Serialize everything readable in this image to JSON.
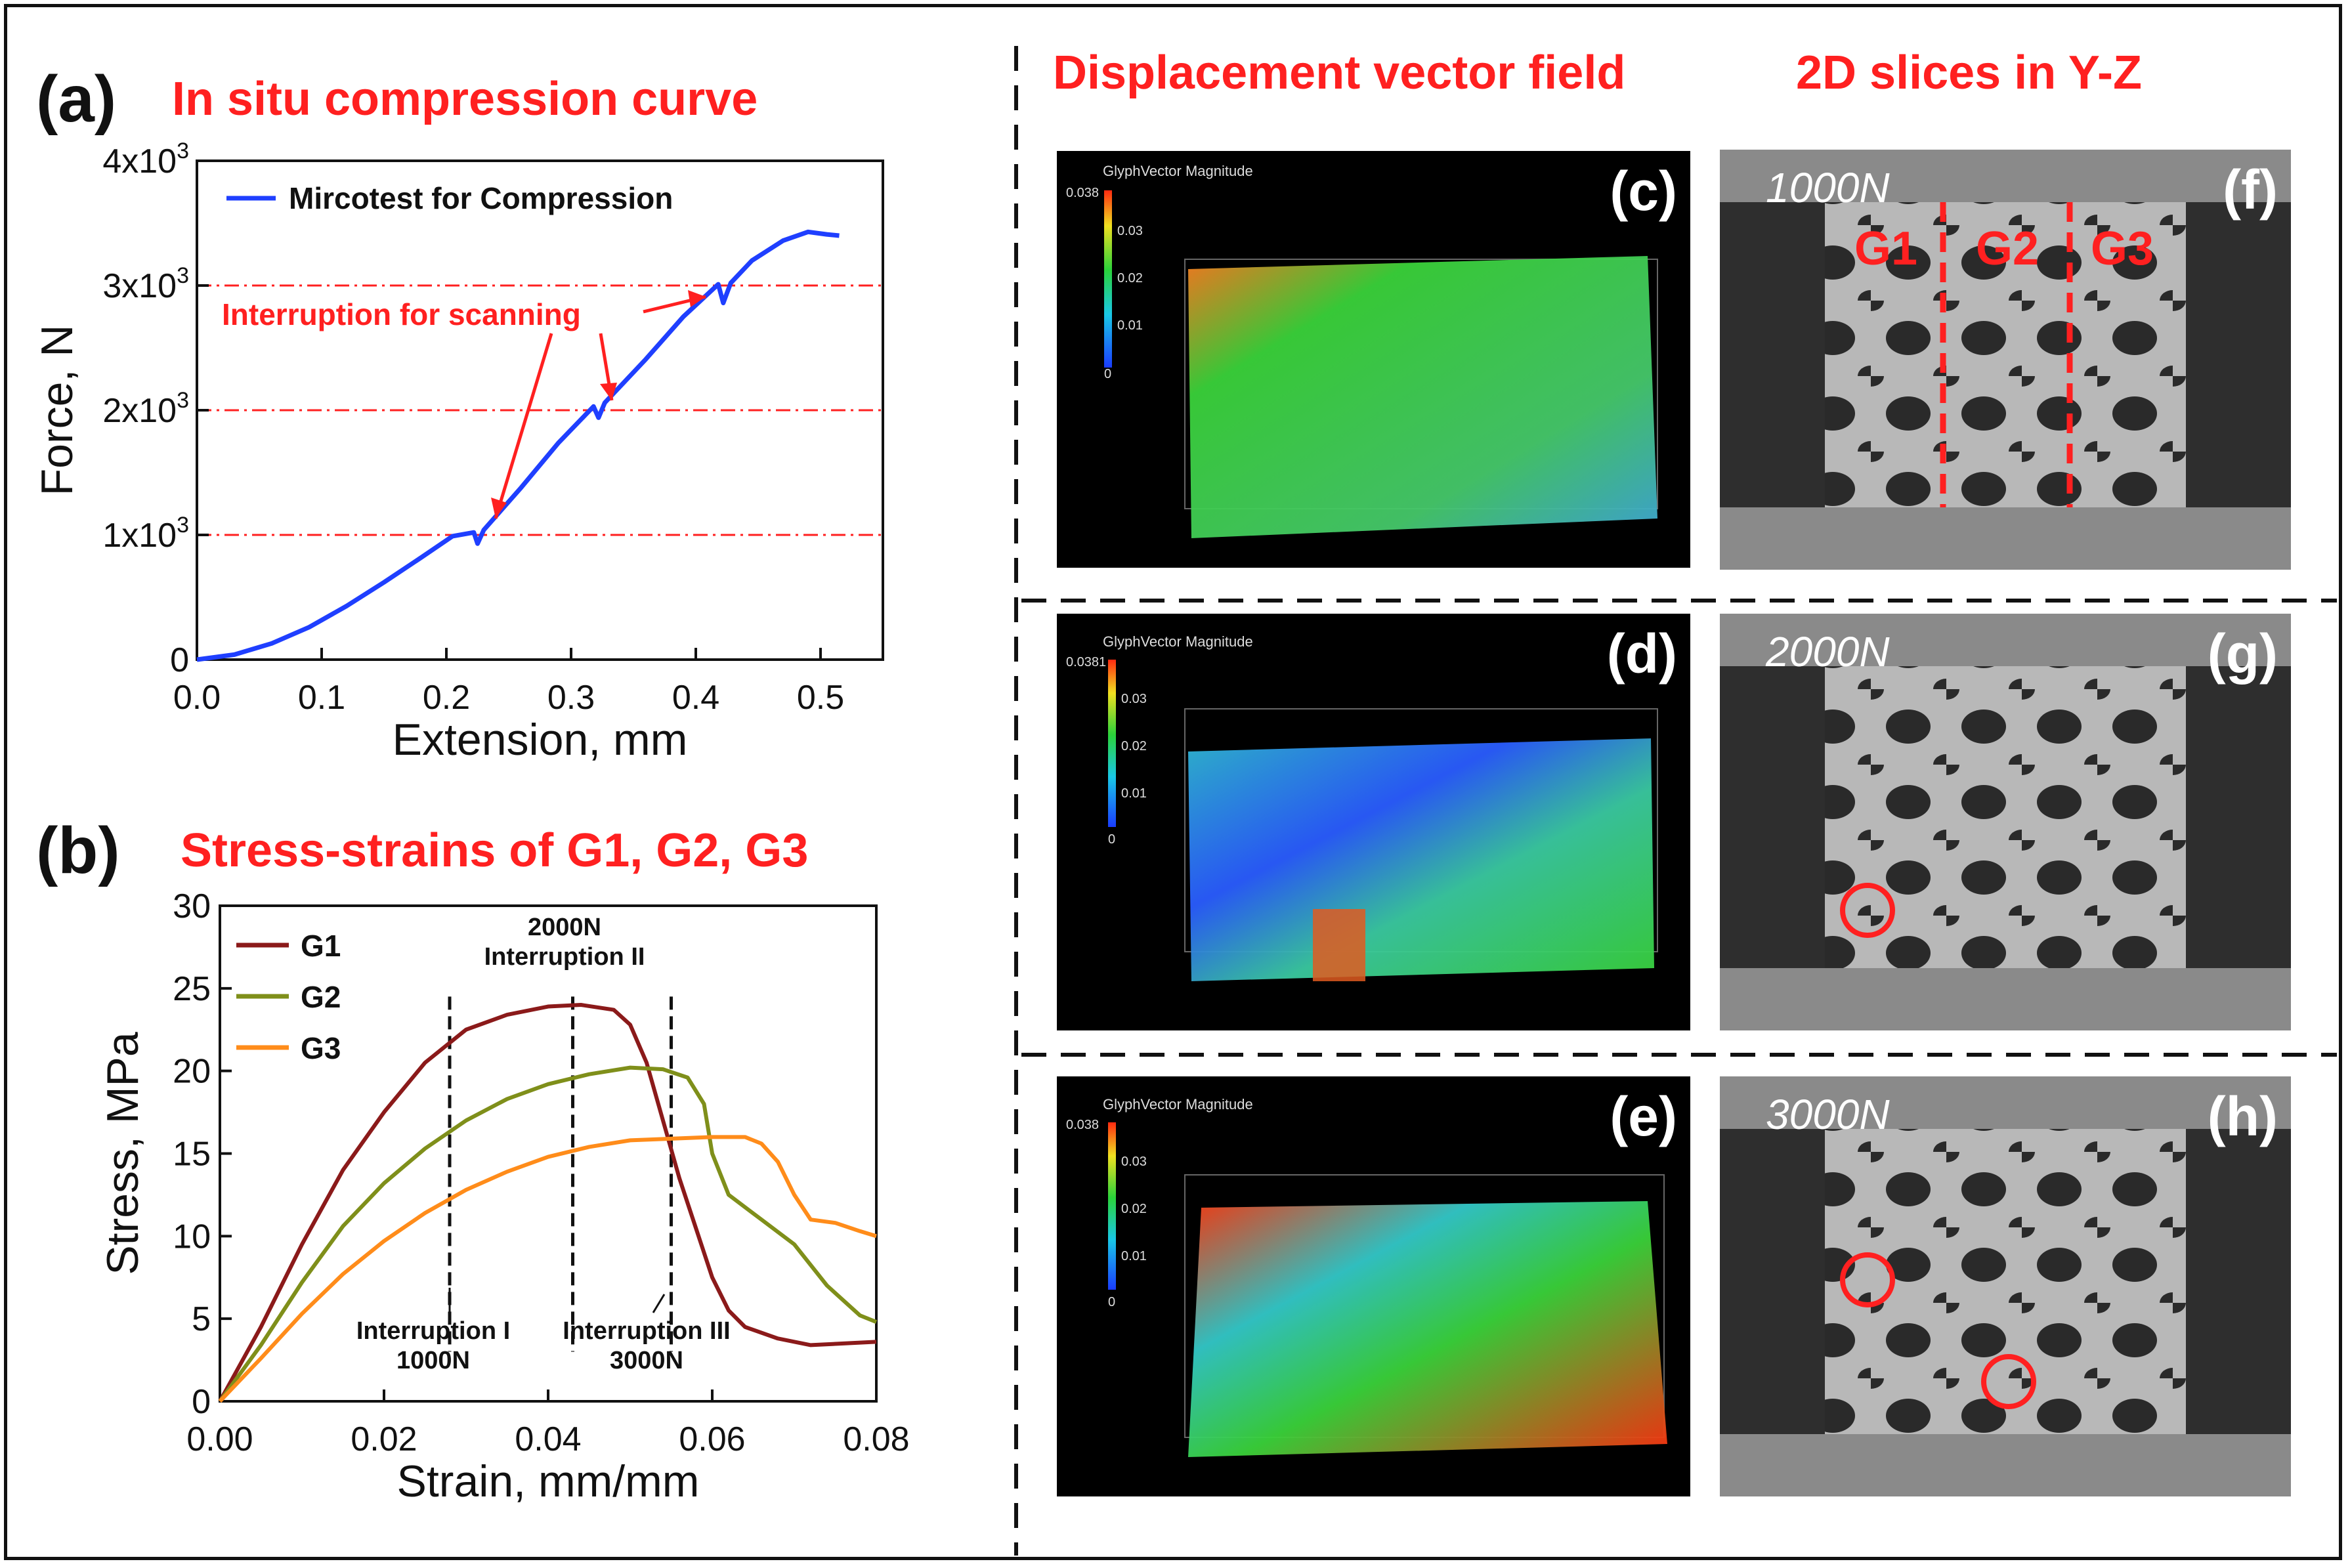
{
  "figure": {
    "panel_a": {
      "letter": "(a)",
      "title": "In situ compression curve",
      "annotation": "Interruption for scanning",
      "legend": "Mircotest for Compression",
      "legend_color": "#1f3fff",
      "ref_color": "#ff2020"
    },
    "panel_b": {
      "letter": "(b)",
      "title": "Stress-strains of G1, G2, G3",
      "annotations": [
        {
          "line1": "Interruption I",
          "line2": "1000N"
        },
        {
          "line1": "2000N",
          "line2": "Interruption II"
        },
        {
          "line1": "Interruption III",
          "line2": "3000N"
        }
      ]
    },
    "right": {
      "header_left": "Displacement vector field",
      "header_right": "2D slices  in Y-Z",
      "vector_panels": [
        {
          "letter": "(c)",
          "colorbar_title": "GlyphVector Magnitude",
          "max": "0.038",
          "ticks": [
            "0.03",
            "0.02",
            "0.01",
            "0"
          ]
        },
        {
          "letter": "(d)",
          "colorbar_title": "GlyphVector Magnitude",
          "max": "0.0381",
          "ticks": [
            "0.03",
            "0.02",
            "0.01",
            "0"
          ]
        },
        {
          "letter": "(e)",
          "colorbar_title": "GlyphVector Magnitude",
          "max": "0.038",
          "ticks": [
            "0.03",
            "0.02",
            "0.01",
            "0"
          ]
        }
      ],
      "slice_panels": [
        {
          "letter": "(f)",
          "load": "1000N",
          "regions": [
            "G1",
            "G2",
            "G3"
          ]
        },
        {
          "letter": "(g)",
          "load": "2000N"
        },
        {
          "letter": "(h)",
          "load": "3000N"
        }
      ]
    }
  },
  "chart_data": [
    {
      "type": "line",
      "title": "In situ compression curve",
      "xlabel": "Extension, mm",
      "ylabel": "Force, N",
      "xlim": [
        0.0,
        0.55
      ],
      "ylim": [
        0,
        4000
      ],
      "xticks": [
        "0.0",
        "0.1",
        "0.2",
        "0.3",
        "0.4",
        "0.5"
      ],
      "xtick_values": [
        0.0,
        0.1,
        0.2,
        0.3,
        0.4,
        0.5
      ],
      "yticks": [
        {
          "value": 0,
          "base": "0",
          "exp": ""
        },
        {
          "value": 1000,
          "base": "1x10",
          "exp": "3"
        },
        {
          "value": 2000,
          "base": "2x10",
          "exp": "3"
        },
        {
          "value": 3000,
          "base": "3x10",
          "exp": "3"
        },
        {
          "value": 4000,
          "base": "4x10",
          "exp": "3"
        }
      ],
      "reference_lines": [
        1000,
        2000,
        3000
      ],
      "series": [
        {
          "name": "Mircotest for Compression",
          "color": "#1f3fff",
          "x": [
            0.0,
            0.03,
            0.06,
            0.09,
            0.12,
            0.15,
            0.18,
            0.205,
            0.222,
            0.225,
            0.23,
            0.26,
            0.29,
            0.318,
            0.322,
            0.327,
            0.36,
            0.39,
            0.418,
            0.422,
            0.428,
            0.445,
            0.47,
            0.49,
            0.505,
            0.515
          ],
          "y": [
            0,
            40,
            130,
            260,
            430,
            620,
            820,
            990,
            1020,
            930,
            1040,
            1380,
            1740,
            2030,
            1940,
            2060,
            2410,
            2750,
            3010,
            2860,
            3020,
            3200,
            3360,
            3430,
            3410,
            3400
          ]
        }
      ],
      "annotation_text": "Interruption for scanning"
    },
    {
      "type": "line",
      "title": "Stress-strains of G1, G2, G3",
      "xlabel": "Strain, mm/mm",
      "ylabel": "Stress, MPa",
      "xlim": [
        0.0,
        0.08
      ],
      "ylim": [
        0,
        30
      ],
      "xticks": [
        "0.00",
        "0.02",
        "0.04",
        "0.06",
        "0.08"
      ],
      "xtick_values": [
        0.0,
        0.02,
        0.04,
        0.06,
        0.08
      ],
      "yticks": [
        "0",
        "5",
        "10",
        "15",
        "20",
        "25",
        "30"
      ],
      "ytick_values": [
        0,
        5,
        10,
        15,
        20,
        25,
        30
      ],
      "vertical_markers": [
        0.028,
        0.043,
        0.055
      ],
      "series": [
        {
          "name": "G1",
          "color": "#8b1a1a",
          "x": [
            0.0,
            0.005,
            0.01,
            0.015,
            0.02,
            0.025,
            0.03,
            0.035,
            0.04,
            0.044,
            0.048,
            0.05,
            0.052,
            0.054,
            0.056,
            0.058,
            0.06,
            0.062,
            0.064,
            0.068,
            0.072,
            0.076,
            0.08
          ],
          "y": [
            0,
            4.5,
            9.5,
            14,
            17.5,
            20.5,
            22.5,
            23.4,
            23.9,
            24.0,
            23.7,
            22.8,
            20.5,
            17,
            13.5,
            10.5,
            7.5,
            5.5,
            4.5,
            3.8,
            3.4,
            3.5,
            3.6
          ]
        },
        {
          "name": "G2",
          "color": "#7f8f1a",
          "x": [
            0.0,
            0.005,
            0.01,
            0.015,
            0.02,
            0.025,
            0.03,
            0.035,
            0.04,
            0.045,
            0.05,
            0.054,
            0.057,
            0.059,
            0.06,
            0.062,
            0.066,
            0.07,
            0.074,
            0.078,
            0.08
          ],
          "y": [
            0,
            3.4,
            7.2,
            10.6,
            13.2,
            15.3,
            17,
            18.3,
            19.2,
            19.8,
            20.2,
            20.1,
            19.6,
            18,
            15,
            12.5,
            11,
            9.5,
            7,
            5.2,
            4.8
          ]
        },
        {
          "name": "G3",
          "color": "#ff8c1a",
          "x": [
            0.0,
            0.005,
            0.01,
            0.015,
            0.02,
            0.025,
            0.03,
            0.035,
            0.04,
            0.045,
            0.05,
            0.055,
            0.06,
            0.064,
            0.066,
            0.068,
            0.07,
            0.072,
            0.075,
            0.078,
            0.08
          ],
          "y": [
            0,
            2.6,
            5.3,
            7.7,
            9.7,
            11.4,
            12.8,
            13.9,
            14.8,
            15.4,
            15.8,
            15.9,
            16.0,
            16.0,
            15.6,
            14.5,
            12.5,
            11.0,
            10.8,
            10.3,
            10.0
          ]
        }
      ]
    }
  ]
}
